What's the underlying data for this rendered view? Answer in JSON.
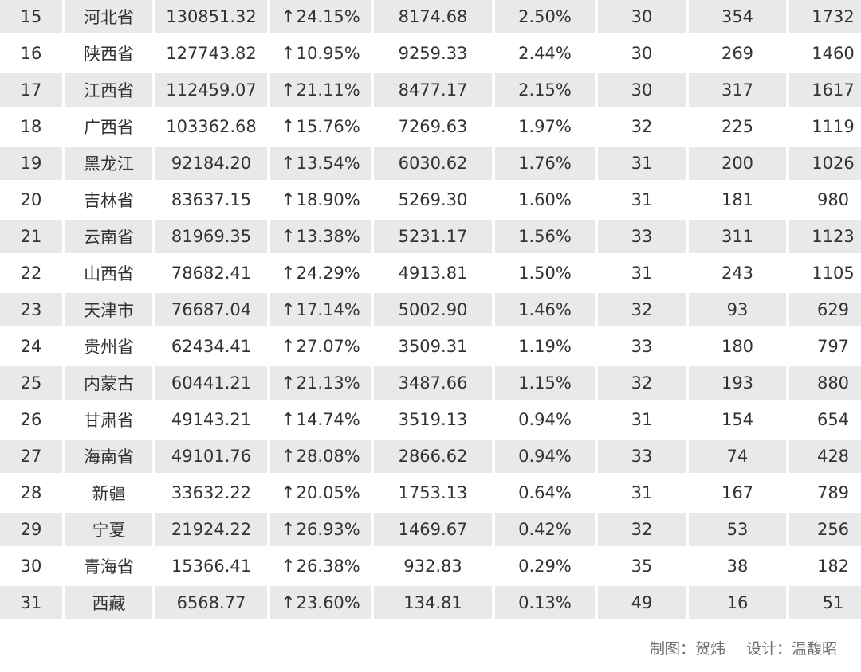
{
  "colors": {
    "shade": "#e9e9eb",
    "text": "#333333",
    "credit": "#707070"
  },
  "icons": {
    "growth": "up-arrow-icon"
  },
  "rows": [
    {
      "rank": "15",
      "province": "河北省",
      "value": "130851.32",
      "growth": "24.15%",
      "v2": "8174.68",
      "share": "2.50%",
      "c1": "30",
      "c2": "354",
      "c3": "1732"
    },
    {
      "rank": "16",
      "province": "陕西省",
      "value": "127743.82",
      "growth": "10.95%",
      "v2": "9259.33",
      "share": "2.44%",
      "c1": "30",
      "c2": "269",
      "c3": "1460"
    },
    {
      "rank": "17",
      "province": "江西省",
      "value": "112459.07",
      "growth": "21.11%",
      "v2": "8477.17",
      "share": "2.15%",
      "c1": "30",
      "c2": "317",
      "c3": "1617"
    },
    {
      "rank": "18",
      "province": "广西省",
      "value": "103362.68",
      "growth": "15.76%",
      "v2": "7269.63",
      "share": "1.97%",
      "c1": "32",
      "c2": "225",
      "c3": "1119"
    },
    {
      "rank": "19",
      "province": "黑龙江",
      "value": "92184.20",
      "growth": "13.54%",
      "v2": "6030.62",
      "share": "1.76%",
      "c1": "31",
      "c2": "200",
      "c3": "1026"
    },
    {
      "rank": "20",
      "province": "吉林省",
      "value": "83637.15",
      "growth": "18.90%",
      "v2": "5269.30",
      "share": "1.60%",
      "c1": "31",
      "c2": "181",
      "c3": "980"
    },
    {
      "rank": "21",
      "province": "云南省",
      "value": "81969.35",
      "growth": "13.38%",
      "v2": "5231.17",
      "share": "1.56%",
      "c1": "33",
      "c2": "311",
      "c3": "1123"
    },
    {
      "rank": "22",
      "province": "山西省",
      "value": "78682.41",
      "growth": "24.29%",
      "v2": "4913.81",
      "share": "1.50%",
      "c1": "31",
      "c2": "243",
      "c3": "1105"
    },
    {
      "rank": "23",
      "province": "天津市",
      "value": "76687.04",
      "growth": "17.14%",
      "v2": "5002.90",
      "share": "1.46%",
      "c1": "32",
      "c2": "93",
      "c3": "629"
    },
    {
      "rank": "24",
      "province": "贵州省",
      "value": "62434.41",
      "growth": "27.07%",
      "v2": "3509.31",
      "share": "1.19%",
      "c1": "33",
      "c2": "180",
      "c3": "797"
    },
    {
      "rank": "25",
      "province": "内蒙古",
      "value": "60441.21",
      "growth": "21.13%",
      "v2": "3487.66",
      "share": "1.15%",
      "c1": "32",
      "c2": "193",
      "c3": "880"
    },
    {
      "rank": "26",
      "province": "甘肃省",
      "value": "49143.21",
      "growth": "14.74%",
      "v2": "3519.13",
      "share": "0.94%",
      "c1": "31",
      "c2": "154",
      "c3": "654"
    },
    {
      "rank": "27",
      "province": "海南省",
      "value": "49101.76",
      "growth": "28.08%",
      "v2": "2866.62",
      "share": "0.94%",
      "c1": "33",
      "c2": "74",
      "c3": "428"
    },
    {
      "rank": "28",
      "province": "新疆",
      "value": "33632.22",
      "growth": "20.05%",
      "v2": "1753.13",
      "share": "0.64%",
      "c1": "31",
      "c2": "167",
      "c3": "789"
    },
    {
      "rank": "29",
      "province": "宁夏",
      "value": "21924.22",
      "growth": "26.93%",
      "v2": "1469.67",
      "share": "0.42%",
      "c1": "32",
      "c2": "53",
      "c3": "256"
    },
    {
      "rank": "30",
      "province": "青海省",
      "value": "15366.41",
      "growth": "26.38%",
      "v2": "932.83",
      "share": "0.29%",
      "c1": "35",
      "c2": "38",
      "c3": "182"
    },
    {
      "rank": "31",
      "province": "西藏",
      "value": "6568.77",
      "growth": "23.60%",
      "v2": "134.81",
      "share": "0.13%",
      "c1": "49",
      "c2": "16",
      "c3": "51"
    }
  ],
  "credits": {
    "chart_label": "制图：",
    "chart_name": "贺炜",
    "design_label": "设计：",
    "design_name": "温馥昭"
  }
}
